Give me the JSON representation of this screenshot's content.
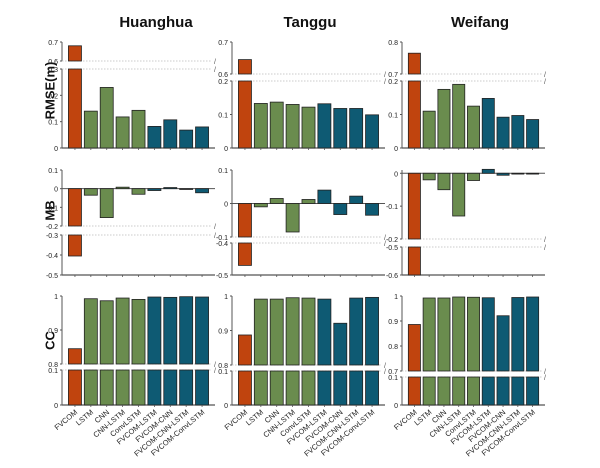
{
  "chart_data": {
    "type": "bar",
    "layout": "3x3 grid of broken-axis bar charts",
    "columns": [
      "Huanghua",
      "Tanggu",
      "Weifang"
    ],
    "rows": [
      "RMSE(m)",
      "MB",
      "CC"
    ],
    "categories": [
      "FVCOM",
      "LSTM",
      "CNN",
      "CNN-LSTM",
      "ConvLSTM",
      "FVCOM-LSTM",
      "FVCOM-CNN",
      "FVCOM-CNN-LSTM",
      "FVCOM-ConvLSTM"
    ],
    "category_groups": [
      "physical",
      "dl",
      "dl",
      "dl",
      "dl",
      "hybrid",
      "hybrid",
      "hybrid",
      "hybrid"
    ],
    "colors": {
      "physical": "#c0440e",
      "dl": "#6a8c4e",
      "hybrid": "#0e5a73",
      "break_line": "#bbbbbb"
    },
    "panels": [
      {
        "column": "Huanghua",
        "metric": "RMSE(m)",
        "values": [
          0.68,
          0.14,
          0.23,
          0.118,
          0.143,
          0.082,
          0.107,
          0.068,
          0.08
        ],
        "lower_range": [
          0,
          0.3
        ],
        "upper_range": [
          0.6,
          0.7
        ],
        "lower_ticks": [
          "0",
          "0.1",
          "0.2",
          "0.3"
        ],
        "upper_ticks": [
          "0.6",
          "0.7"
        ]
      },
      {
        "column": "Tanggu",
        "metric": "RMSE(m)",
        "values": [
          0.645,
          0.133,
          0.137,
          0.13,
          0.122,
          0.132,
          0.118,
          0.118,
          0.099
        ],
        "lower_range": [
          0,
          0.2
        ],
        "upper_range": [
          0.6,
          0.7
        ],
        "lower_ticks": [
          "0",
          "0.1",
          "0.2"
        ],
        "upper_ticks": [
          "0.6",
          "0.7"
        ]
      },
      {
        "column": "Weifang",
        "metric": "RMSE(m)",
        "values": [
          0.765,
          0.11,
          0.175,
          0.19,
          0.125,
          0.148,
          0.092,
          0.097,
          0.085
        ],
        "lower_range": [
          0,
          0.2
        ],
        "upper_range": [
          0.7,
          0.8
        ],
        "lower_ticks": [
          "0",
          "0.1",
          "0.2"
        ],
        "upper_ticks": [
          "0.7",
          "0.8"
        ]
      },
      {
        "column": "Huanghua",
        "metric": "MB",
        "values": [
          -0.405,
          -0.035,
          -0.155,
          0.008,
          -0.03,
          -0.01,
          0.006,
          -0.002,
          -0.022
        ],
        "upper_range": [
          -0.2,
          0.1
        ],
        "lower_range": [
          -0.5,
          -0.3
        ],
        "upper_ticks": [
          "0.1",
          "0",
          "-0.1",
          "-0.2"
        ],
        "lower_ticks": [
          "-0.3",
          "-0.4",
          "-0.5"
        ]
      },
      {
        "column": "Tanggu",
        "metric": "MB",
        "values": [
          -0.47,
          -0.01,
          0.015,
          -0.085,
          0.012,
          0.04,
          -0.033,
          0.022,
          -0.035
        ],
        "upper_range": [
          -0.1,
          0.1
        ],
        "lower_range": [
          -0.5,
          -0.4
        ],
        "upper_ticks": [
          "0.1",
          "0",
          "-0.1"
        ],
        "lower_ticks": [
          "-0.4",
          "-0.5"
        ]
      },
      {
        "column": "Weifang",
        "metric": "MB",
        "values": [
          -0.6,
          -0.02,
          -0.05,
          -0.13,
          -0.022,
          0.012,
          -0.006,
          -0.002,
          -0.002
        ],
        "upper_range": [
          -0.2,
          0.01
        ],
        "lower_range": [
          -0.6,
          -0.5
        ],
        "upper_ticks": [
          "0",
          "-0.1",
          "-0.2"
        ],
        "lower_ticks": [
          "-0.5",
          "-0.6"
        ]
      },
      {
        "column": "Huanghua",
        "metric": "CC",
        "values": [
          0.845,
          0.992,
          0.986,
          0.994,
          0.99,
          0.997,
          0.996,
          0.998,
          0.997
        ],
        "lower_range": [
          0,
          0.1
        ],
        "upper_range": [
          0.8,
          1.0
        ],
        "lower_ticks": [
          "0",
          "0.1"
        ],
        "upper_ticks": [
          "0.8",
          "0.9",
          "1"
        ]
      },
      {
        "column": "Tanggu",
        "metric": "CC",
        "values": [
          0.887,
          0.991,
          0.991,
          0.995,
          0.994,
          0.991,
          0.921,
          0.994,
          0.996
        ],
        "lower_range": [
          0,
          0.1
        ],
        "upper_range": [
          0.8,
          1.0
        ],
        "lower_ticks": [
          "0",
          "0.1"
        ],
        "upper_ticks": [
          "0.8",
          "0.9",
          "1"
        ]
      },
      {
        "column": "Weifang",
        "metric": "CC",
        "values": [
          0.886,
          0.992,
          0.992,
          0.996,
          0.995,
          0.993,
          0.921,
          0.994,
          0.996
        ],
        "lower_range": [
          0,
          0.1
        ],
        "upper_range": [
          0.7,
          1.0
        ],
        "lower_ticks": [
          "0",
          "0.1"
        ],
        "upper_ticks": [
          "0.7",
          "0.8",
          "0.9",
          "1"
        ]
      }
    ]
  }
}
